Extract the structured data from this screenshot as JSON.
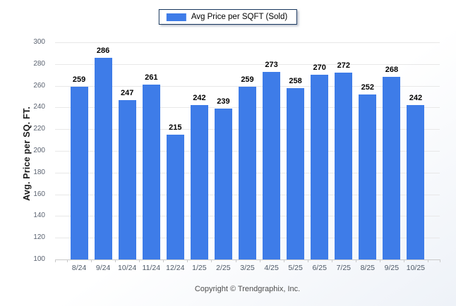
{
  "legend": {
    "label": "Avg Price per SQFT (Sold)",
    "swatch_color": "#3e7ce8"
  },
  "footer": {
    "text": "Copyright © Trendgraphix, Inc."
  },
  "colors": {
    "bar": "#3e7ce8",
    "legend_border": "#17365d",
    "gridline": "#e8e8e8",
    "axis_line": "#c9c9c9",
    "value_label": "#000000",
    "y_tick_label": "#5a6270",
    "x_tick_label": "#4c5866",
    "footer_text": "#4d4d4d"
  },
  "chart_data": {
    "type": "bar",
    "title": "",
    "categories": [
      "8/24",
      "9/24",
      "10/24",
      "11/24",
      "12/24",
      "1/25",
      "2/25",
      "3/25",
      "4/25",
      "5/25",
      "6/25",
      "7/25",
      "8/25",
      "9/25",
      "10/25"
    ],
    "values": [
      259,
      286,
      247,
      261,
      215,
      242,
      239,
      259,
      273,
      258,
      270,
      272,
      252,
      268,
      242
    ],
    "series": [
      {
        "name": "Avg Price per SQFT (Sold)",
        "values": [
          259,
          286,
          247,
          261,
          215,
          242,
          239,
          259,
          273,
          258,
          270,
          272,
          252,
          268,
          242
        ]
      }
    ],
    "xlabel": "",
    "ylabel": "Avg. Price per SQ. FT.",
    "ylim": [
      100,
      300
    ],
    "ytick_step": 20,
    "grid": true,
    "legend_position": "top-center",
    "bar_color": "#3e7ce8"
  }
}
